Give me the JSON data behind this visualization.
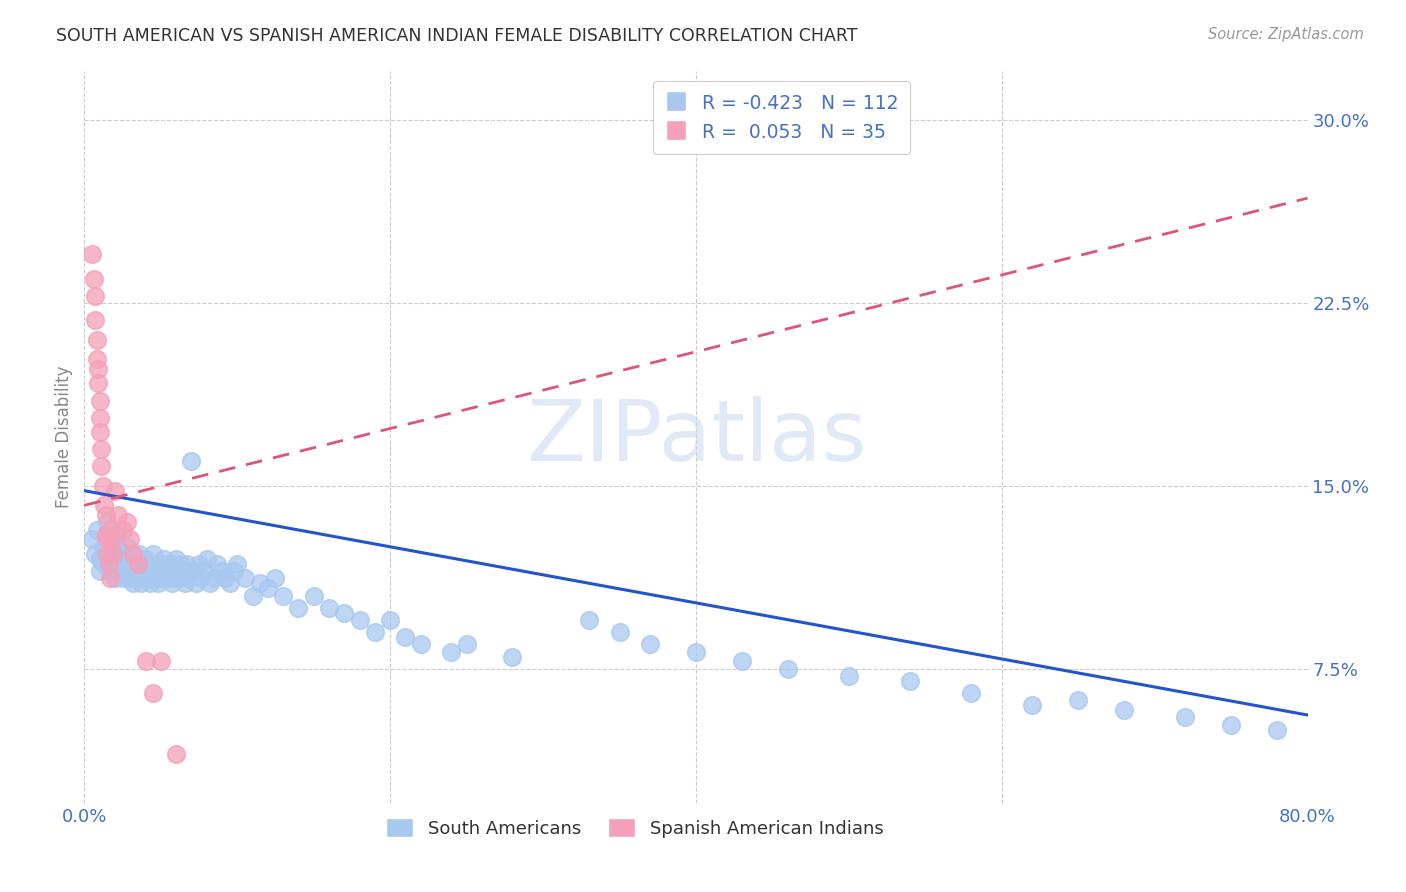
{
  "title": "SOUTH AMERICAN VS SPANISH AMERICAN INDIAN FEMALE DISABILITY CORRELATION CHART",
  "source": "Source: ZipAtlas.com",
  "ylabel": "Female Disability",
  "watermark": "ZIPatlas",
  "xlim": [
    0.0,
    0.8
  ],
  "ylim": [
    0.02,
    0.32
  ],
  "blue_R": -0.423,
  "blue_N": 112,
  "pink_R": 0.053,
  "pink_N": 35,
  "blue_color": "#A8C8F0",
  "pink_color": "#F4A0B8",
  "blue_line_color": "#2255CC",
  "pink_line_color": "#DD5577",
  "title_color": "#333333",
  "axis_label_color": "#888888",
  "tick_color": "#4472C4",
  "grid_color": "#CCCCCC",
  "blue_line_x0": 0.0,
  "blue_line_y0": 0.148,
  "blue_line_x1": 0.8,
  "blue_line_y1": 0.056,
  "pink_line_x0": 0.0,
  "pink_line_y0": 0.142,
  "pink_line_x1": 0.8,
  "pink_line_y1": 0.268,
  "blue_scatter_x": [
    0.005,
    0.007,
    0.008,
    0.01,
    0.01,
    0.012,
    0.013,
    0.014,
    0.015,
    0.015,
    0.016,
    0.017,
    0.018,
    0.018,
    0.019,
    0.02,
    0.02,
    0.021,
    0.022,
    0.022,
    0.023,
    0.024,
    0.025,
    0.026,
    0.027,
    0.028,
    0.029,
    0.03,
    0.03,
    0.031,
    0.032,
    0.033,
    0.034,
    0.035,
    0.035,
    0.036,
    0.037,
    0.038,
    0.04,
    0.041,
    0.042,
    0.043,
    0.044,
    0.045,
    0.046,
    0.047,
    0.048,
    0.05,
    0.051,
    0.052,
    0.053,
    0.055,
    0.056,
    0.057,
    0.058,
    0.059,
    0.06,
    0.061,
    0.062,
    0.063,
    0.065,
    0.066,
    0.067,
    0.068,
    0.07,
    0.072,
    0.073,
    0.075,
    0.076,
    0.078,
    0.08,
    0.082,
    0.085,
    0.087,
    0.09,
    0.092,
    0.095,
    0.098,
    0.1,
    0.105,
    0.11,
    0.115,
    0.12,
    0.125,
    0.13,
    0.14,
    0.15,
    0.16,
    0.17,
    0.18,
    0.19,
    0.2,
    0.21,
    0.22,
    0.24,
    0.25,
    0.28,
    0.33,
    0.35,
    0.37,
    0.4,
    0.43,
    0.46,
    0.5,
    0.54,
    0.58,
    0.62,
    0.65,
    0.68,
    0.72,
    0.75,
    0.78
  ],
  "blue_scatter_y": [
    0.128,
    0.122,
    0.132,
    0.12,
    0.115,
    0.125,
    0.118,
    0.13,
    0.122,
    0.135,
    0.128,
    0.115,
    0.12,
    0.125,
    0.118,
    0.112,
    0.122,
    0.13,
    0.115,
    0.125,
    0.12,
    0.118,
    0.112,
    0.122,
    0.115,
    0.125,
    0.118,
    0.112,
    0.12,
    0.115,
    0.11,
    0.118,
    0.112,
    0.12,
    0.115,
    0.122,
    0.11,
    0.115,
    0.12,
    0.112,
    0.118,
    0.11,
    0.115,
    0.122,
    0.112,
    0.118,
    0.11,
    0.115,
    0.112,
    0.12,
    0.118,
    0.112,
    0.115,
    0.11,
    0.118,
    0.112,
    0.12,
    0.115,
    0.112,
    0.118,
    0.115,
    0.11,
    0.118,
    0.112,
    0.16,
    0.115,
    0.11,
    0.118,
    0.112,
    0.115,
    0.12,
    0.11,
    0.112,
    0.118,
    0.115,
    0.112,
    0.11,
    0.115,
    0.118,
    0.112,
    0.105,
    0.11,
    0.108,
    0.112,
    0.105,
    0.1,
    0.105,
    0.1,
    0.098,
    0.095,
    0.09,
    0.095,
    0.088,
    0.085,
    0.082,
    0.085,
    0.08,
    0.095,
    0.09,
    0.085,
    0.082,
    0.078,
    0.075,
    0.072,
    0.07,
    0.065,
    0.06,
    0.062,
    0.058,
    0.055,
    0.052,
    0.05
  ],
  "pink_scatter_x": [
    0.005,
    0.006,
    0.007,
    0.007,
    0.008,
    0.008,
    0.009,
    0.009,
    0.01,
    0.01,
    0.01,
    0.011,
    0.011,
    0.012,
    0.013,
    0.014,
    0.014,
    0.015,
    0.015,
    0.016,
    0.017,
    0.017,
    0.018,
    0.019,
    0.02,
    0.022,
    0.025,
    0.028,
    0.03,
    0.032,
    0.035,
    0.04,
    0.045,
    0.05,
    0.06
  ],
  "pink_scatter_y": [
    0.245,
    0.235,
    0.228,
    0.218,
    0.21,
    0.202,
    0.198,
    0.192,
    0.185,
    0.178,
    0.172,
    0.165,
    0.158,
    0.15,
    0.142,
    0.138,
    0.13,
    0.128,
    0.122,
    0.118,
    0.112,
    0.132,
    0.128,
    0.122,
    0.148,
    0.138,
    0.132,
    0.135,
    0.128,
    0.122,
    0.118,
    0.078,
    0.065,
    0.078,
    0.04
  ]
}
